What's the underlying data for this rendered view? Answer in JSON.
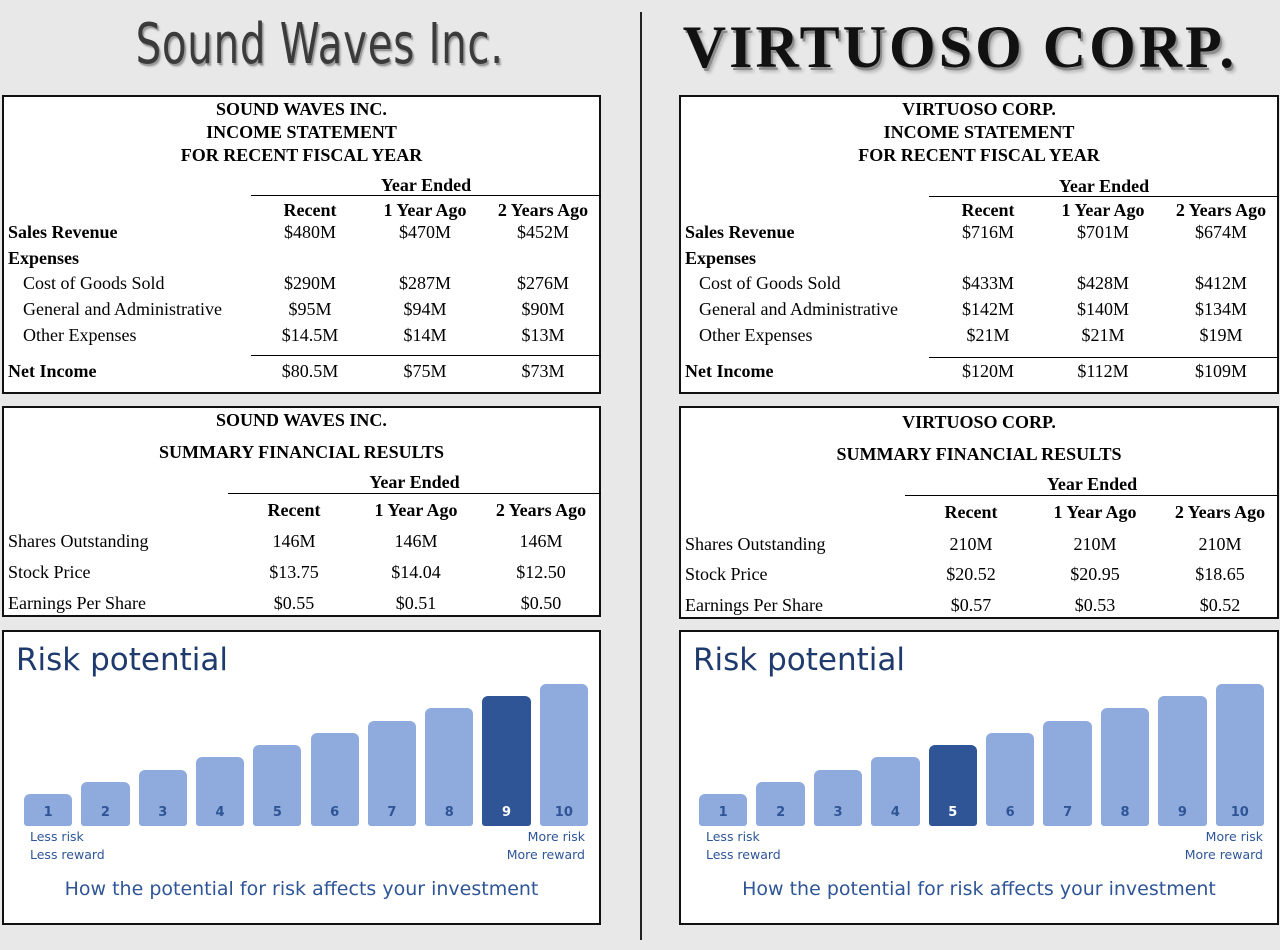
{
  "companies": [
    {
      "logo": "Sound Waves Inc.",
      "income": {
        "title1": "SOUND WAVES INC.",
        "title2": "INCOME STATEMENT",
        "title3": "FOR RECENT FISCAL YEAR",
        "year_ended": "Year Ended",
        "cols": [
          "Recent",
          "1 Year Ago",
          "2 Years Ago"
        ],
        "sales_label": "Sales Revenue",
        "sales": [
          "$480M",
          "$470M",
          "$452M"
        ],
        "expenses_label": "Expenses",
        "cogs_label": "Cost of Goods Sold",
        "cogs": [
          "$290M",
          "$287M",
          "$276M"
        ],
        "ga_label": "General and Administrative",
        "ga": [
          "$95M",
          "$94M",
          "$90M"
        ],
        "other_label": "Other Expenses",
        "other": [
          "$14.5M",
          "$14M",
          "$13M"
        ],
        "net_label": "Net Income",
        "net": [
          "$80.5M",
          "$75M",
          "$73M"
        ]
      },
      "summary": {
        "title1": "SOUND WAVES INC.",
        "title2": "SUMMARY FINANCIAL RESULTS",
        "year_ended": "Year Ended",
        "cols": [
          "Recent",
          "1 Year Ago",
          "2 Years Ago"
        ],
        "shares_label": "Shares Outstanding",
        "shares": [
          "146M",
          "146M",
          "146M"
        ],
        "price_label": "Stock Price",
        "price": [
          "$13.75",
          "$14.04",
          "$12.50"
        ],
        "eps_label": "Earnings Per Share",
        "eps": [
          "$0.55",
          "$0.51",
          "$0.50"
        ]
      },
      "risk": {
        "title": "Risk potential",
        "levels": [
          "1",
          "2",
          "3",
          "4",
          "5",
          "6",
          "7",
          "8",
          "9",
          "10"
        ],
        "selected_level": 9,
        "less_risk": "Less risk",
        "less_reward": "Less reward",
        "more_risk": "More risk",
        "more_reward": "More reward",
        "caption": "How the potential for risk affects your investment",
        "bar_color": "#8faadc",
        "selected_color": "#2f5597"
      }
    },
    {
      "logo": "VIRTUOSO CORP.",
      "income": {
        "title1": "VIRTUOSO CORP.",
        "title2": "INCOME STATEMENT",
        "title3": "FOR RECENT FISCAL YEAR",
        "year_ended": "Year Ended",
        "cols": [
          "Recent",
          "1 Year Ago",
          "2 Years Ago"
        ],
        "sales_label": "Sales Revenue",
        "sales": [
          "$716M",
          "$701M",
          "$674M"
        ],
        "expenses_label": "Expenses",
        "cogs_label": "Cost of Goods Sold",
        "cogs": [
          "$433M",
          "$428M",
          "$412M"
        ],
        "ga_label": "General and Administrative",
        "ga": [
          "$142M",
          "$140M",
          "$134M"
        ],
        "other_label": "Other Expenses",
        "other": [
          "$21M",
          "$21M",
          "$19M"
        ],
        "net_label": "Net Income",
        "net": [
          "$120M",
          "$112M",
          "$109M"
        ]
      },
      "summary": {
        "title1": "VIRTUOSO CORP.",
        "title2": "SUMMARY FINANCIAL RESULTS",
        "year_ended": "Year Ended",
        "cols": [
          "Recent",
          "1 Year Ago",
          "2 Years Ago"
        ],
        "shares_label": "Shares Outstanding",
        "shares": [
          "210M",
          "210M",
          "210M"
        ],
        "price_label": "Stock Price",
        "price": [
          "$20.52",
          "$20.95",
          "$18.65"
        ],
        "eps_label": "Earnings Per Share",
        "eps": [
          "$0.57",
          "$0.53",
          "$0.52"
        ]
      },
      "risk": {
        "title": "Risk potential",
        "levels": [
          "1",
          "2",
          "3",
          "4",
          "5",
          "6",
          "7",
          "8",
          "9",
          "10"
        ],
        "selected_level": 5,
        "less_risk": "Less risk",
        "less_reward": "Less reward",
        "more_risk": "More risk",
        "more_reward": "More reward",
        "caption": "How the potential for risk affects your investment",
        "bar_color": "#8faadc",
        "selected_color": "#2f5597"
      }
    }
  ]
}
